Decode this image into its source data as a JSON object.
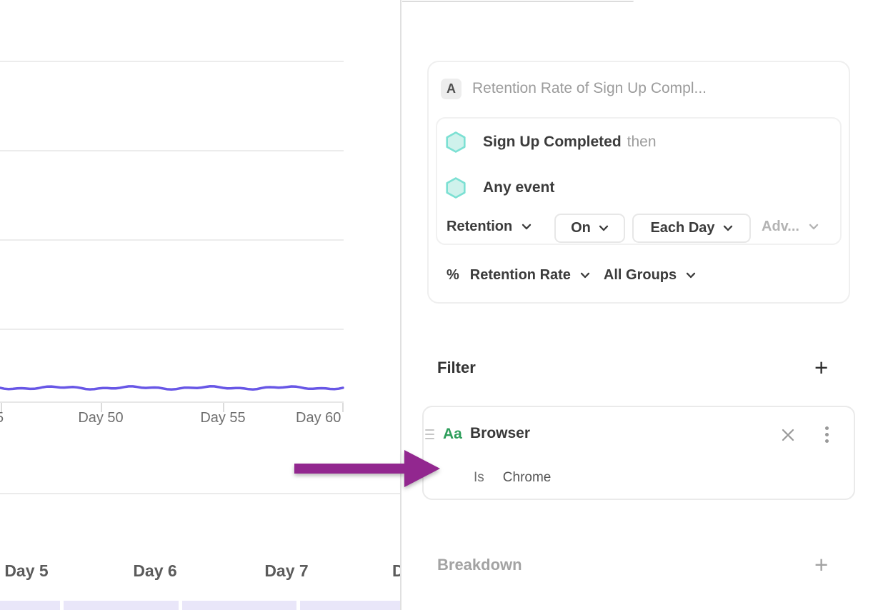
{
  "colors": {
    "retention_line": "#6857E6",
    "annotation_arrow": "#92278F",
    "hexagon_fill": "#CFF2EC",
    "hexagon_border": "#7CE0D3",
    "property_type_green": "#2E9E5B",
    "cohort_cell_lavender": "#E9E6F9"
  },
  "chart_data": {
    "type": "line",
    "title": "",
    "x_tick_labels": [
      "Day 50",
      "Day 55",
      "Day 60"
    ],
    "clipped_left_tick_label": "5",
    "series": [
      {
        "name": "Retention Rate",
        "values_note": "flat slightly-wavy line near bottom of plot; value axis not visible in screenshot"
      }
    ],
    "grid": "horizontal gridlines only",
    "legend": "none visible"
  },
  "cohort_table": {
    "headers": [
      "Day 5",
      "Day 6",
      "Day 7",
      "D"
    ]
  },
  "query_builder": {
    "series_badge": "A",
    "series_title": "Retention Rate of Sign Up Compl...",
    "first_event": "Sign Up Completed",
    "then_label": "then",
    "returning_event": "Any event",
    "measurement_dropdown": "Retention",
    "on_dropdown": "On",
    "interval_dropdown": "Each Day",
    "advanced_dropdown": "Adv...",
    "metric_symbol": "%",
    "metric_dropdown": "Retention Rate",
    "groups_dropdown": "All Groups"
  },
  "filter_section": {
    "title": "Filter",
    "add_label": "+",
    "filter": {
      "type_icon_label": "Aa",
      "property": "Browser",
      "operator": "Is",
      "value": "Chrome"
    }
  },
  "breakdown_section": {
    "title": "Breakdown",
    "add_label": "+"
  }
}
